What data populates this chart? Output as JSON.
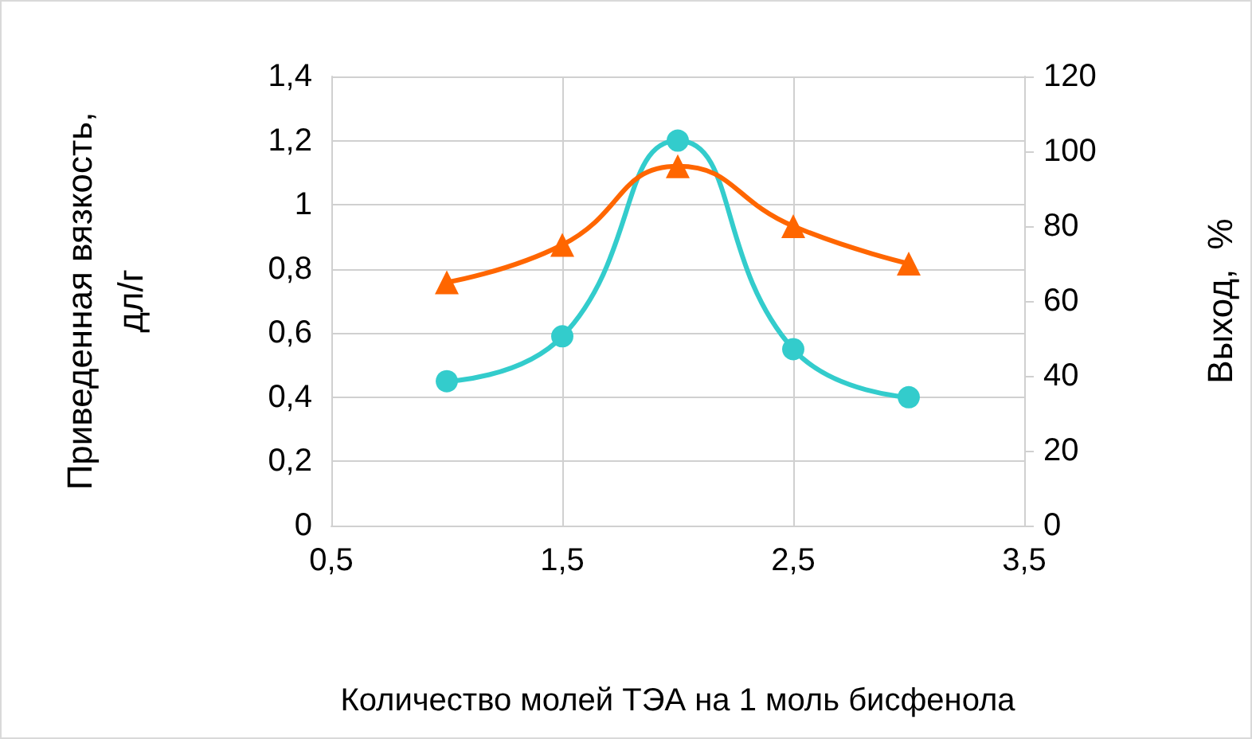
{
  "chart_data": {
    "type": "line",
    "xlabel": "Количество молей ТЭА на 1 моль бисфенола",
    "ylabel": "Приведенная вязкость,\nдл/г",
    "y2label": "Выход,  %",
    "x": [
      1,
      1.5,
      2,
      2.5,
      3
    ],
    "series": [
      {
        "color": "#33cccc",
        "marker": "circle",
        "values": [
          0.45,
          0.59,
          1.2,
          0.55,
          0.4
        ]
      },
      {
        "color": "#ff6600",
        "marker": "triangle",
        "axis": "y2",
        "values": [
          65,
          75,
          96,
          80,
          70
        ]
      }
    ],
    "xlim": [
      0.5,
      3.5
    ],
    "xticks": [
      {
        "value": 0.5,
        "label": "0,5"
      },
      {
        "value": 1.5,
        "label": "1,5"
      },
      {
        "value": 2.5,
        "label": "2,5"
      },
      {
        "value": 3.5,
        "label": "3,5"
      }
    ],
    "ylim": [
      0,
      1.4
    ],
    "yticks": [
      0,
      {
        "value": 0.2,
        "label": "0,2"
      },
      {
        "value": 0.4,
        "label": "0,4"
      },
      {
        "value": 0.6,
        "label": "0,6"
      },
      {
        "value": 0.8,
        "label": "0,8"
      },
      1,
      {
        "value": 1.2,
        "label": "1,2"
      },
      {
        "value": 1.4,
        "label": "1,4"
      }
    ],
    "y2lim": [
      0,
      120
    ],
    "y2ticks": [
      0,
      20,
      40,
      60,
      80,
      100,
      120
    ],
    "grid": true,
    "line_style": "solid"
  }
}
